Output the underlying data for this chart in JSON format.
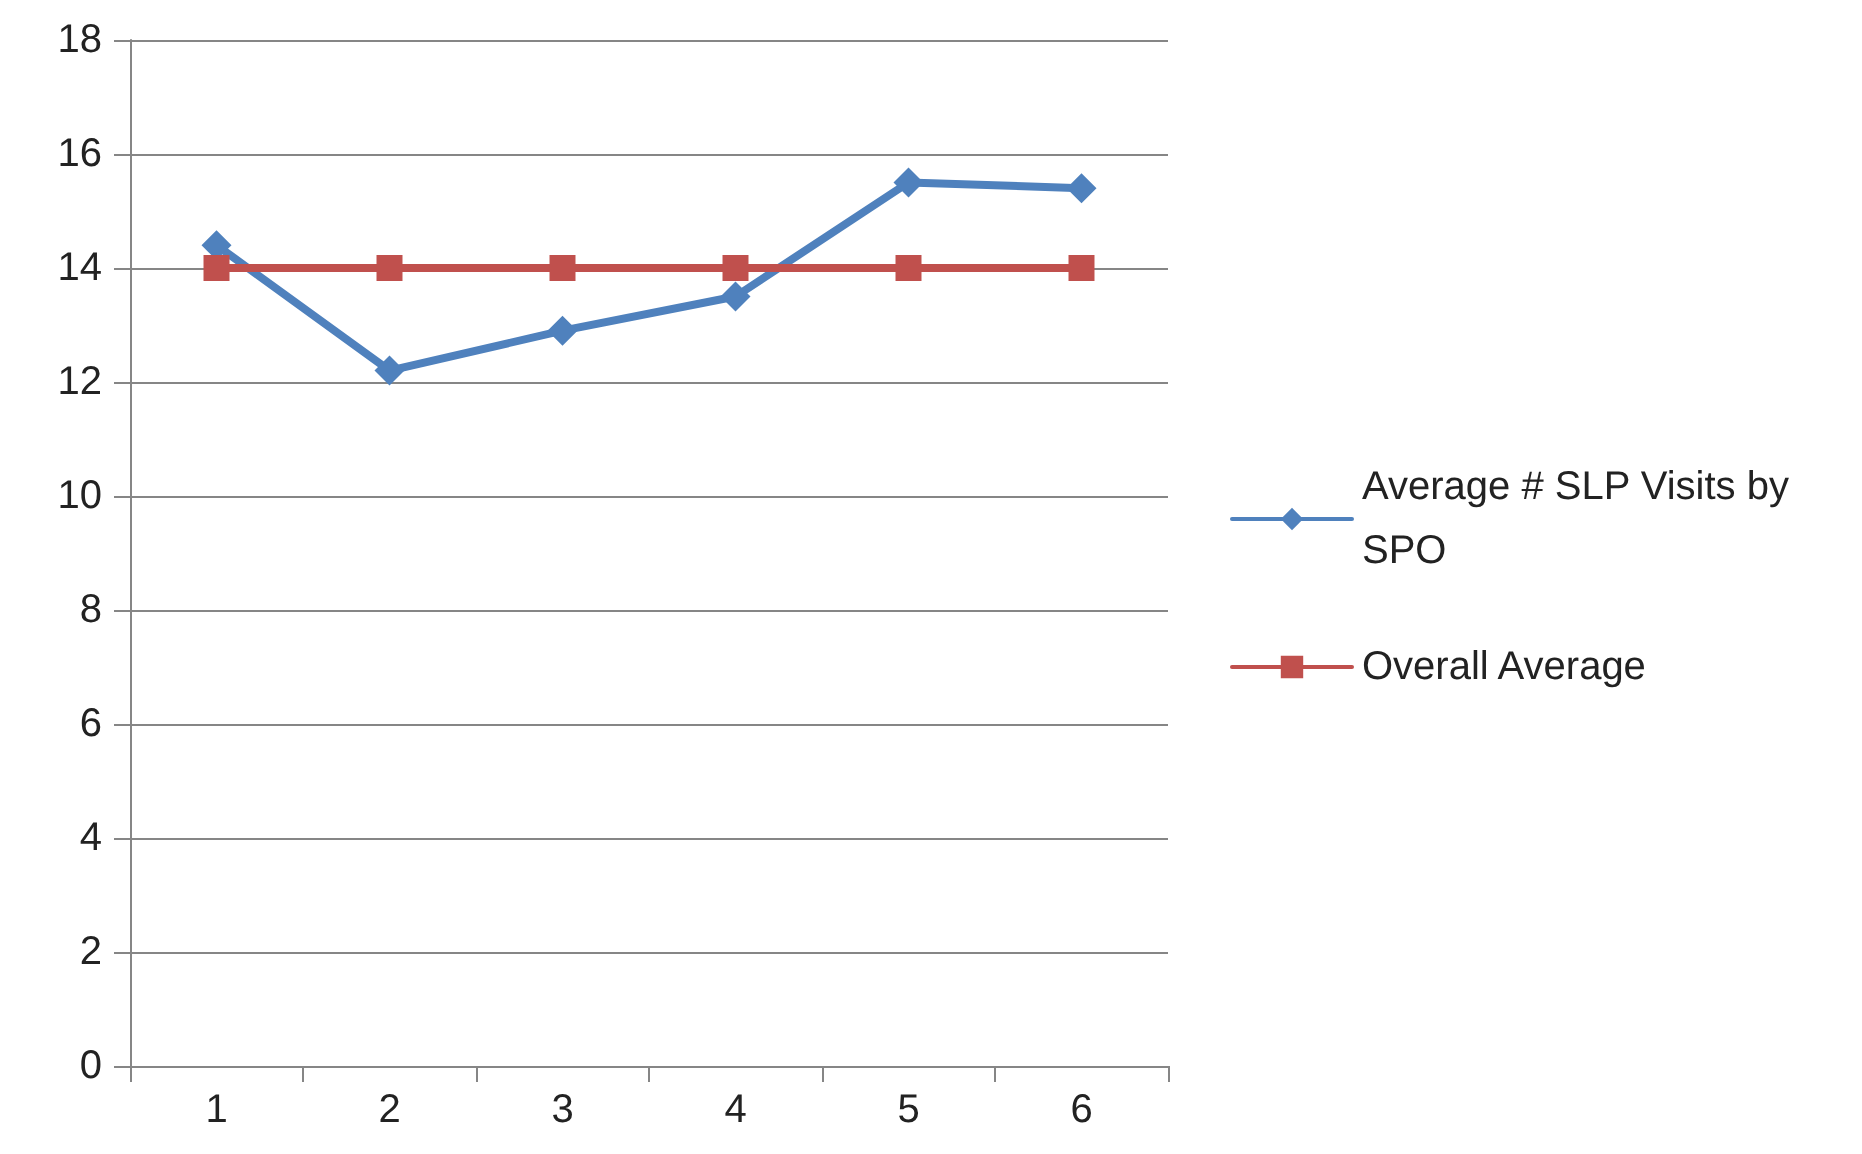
{
  "chart_data": {
    "type": "line",
    "categories": [
      "1",
      "2",
      "3",
      "4",
      "5",
      "6"
    ],
    "series": [
      {
        "name": "Average # SLP Visits by SPO",
        "color": "#4f81bd",
        "marker": "diamond",
        "values": [
          14.4,
          12.2,
          12.9,
          13.5,
          15.5,
          15.4
        ]
      },
      {
        "name": "Overall Average",
        "color": "#c0504d",
        "marker": "square",
        "values": [
          14,
          14,
          14,
          14,
          14,
          14
        ]
      }
    ],
    "ylim": [
      0,
      18
    ],
    "yticks": [
      0,
      2,
      4,
      6,
      8,
      10,
      12,
      14,
      16,
      18
    ],
    "grid": "y",
    "legend": "right"
  }
}
